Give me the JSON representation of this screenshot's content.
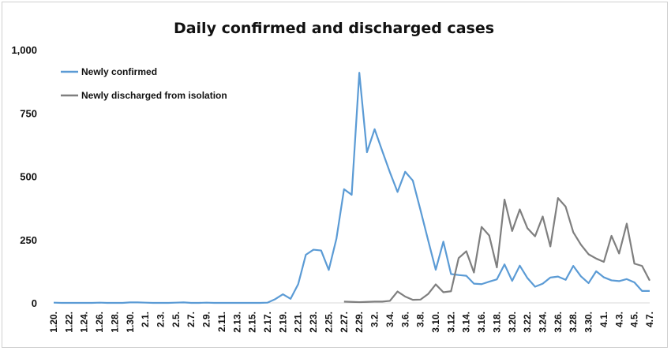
{
  "chart_data": {
    "type": "line",
    "title": "Daily confirmed and discharged cases",
    "xlabel": "",
    "ylabel": "",
    "ylim": [
      0,
      1000
    ],
    "yticks": [
      0,
      250,
      500,
      750,
      1000
    ],
    "ytick_labels": [
      "0",
      "250",
      "500",
      "750",
      "1,000"
    ],
    "grid": false,
    "legend_position": "top-left",
    "x": [
      "1.20.",
      "1.21.",
      "1.22.",
      "1.23.",
      "1.24.",
      "1.25.",
      "1.26.",
      "1.27.",
      "1.28.",
      "1.29.",
      "1.30.",
      "1.31.",
      "2.1.",
      "2.2.",
      "2.3.",
      "2.4.",
      "2.5.",
      "2.6.",
      "2.7.",
      "2.8.",
      "2.9.",
      "2.10.",
      "2.11.",
      "2.12.",
      "2.13.",
      "2.14.",
      "2.15.",
      "2.16.",
      "2.17.",
      "2.18.",
      "2.19.",
      "2.20.",
      "2.21.",
      "2.22.",
      "2.23.",
      "2.24.",
      "2.25.",
      "2.26.",
      "2.27.",
      "2.28.",
      "2.29.",
      "3.1.",
      "3.2.",
      "3.3.",
      "3.4.",
      "3.5.",
      "3.6.",
      "3.7.",
      "3.8.",
      "3.9.",
      "3.10.",
      "3.11.",
      "3.12.",
      "3.13.",
      "3.14.",
      "3.15.",
      "3.16.",
      "3.17.",
      "3.18.",
      "3.19.",
      "3.20.",
      "3.21.",
      "3.22.",
      "3.23.",
      "3.24.",
      "3.25.",
      "3.26.",
      "3.27.",
      "3.28.",
      "3.29.",
      "3.30.",
      "3.31.",
      "4.1.",
      "4.2.",
      "4.3.",
      "4.4.",
      "4.5.",
      "4.6.",
      "4.7."
    ],
    "xtick_labels": [
      "1.20.",
      "1.22.",
      "1.24.",
      "1.26.",
      "1.28.",
      "1.30.",
      "2.1.",
      "2.3.",
      "2.5.",
      "2.7.",
      "2.9.",
      "2.11.",
      "2.13.",
      "2.15.",
      "2.17.",
      "2.19.",
      "2.21.",
      "2.23.",
      "2.25.",
      "2.27.",
      "2.29.",
      "3.2.",
      "3.4.",
      "3.6.",
      "3.8.",
      "3.10.",
      "3.12.",
      "3.14.",
      "3.16.",
      "3.18.",
      "3.20.",
      "3.22.",
      "3.24.",
      "3.26.",
      "3.28.",
      "3.30.",
      "4.1.",
      "4.3.",
      "4.5.",
      "4.7."
    ],
    "series": [
      {
        "name": "Newly confirmed",
        "color": "#5b9bd5",
        "values": [
          1,
          0,
          0,
          0,
          0,
          0,
          1,
          0,
          0,
          0,
          2,
          2,
          1,
          0,
          0,
          0,
          1,
          2,
          0,
          0,
          1,
          0,
          0,
          0,
          0,
          0,
          0,
          0,
          1,
          15,
          34,
          16,
          74,
          190,
          210,
          207,
          130,
          253,
          449,
          427,
          909,
          595,
          686,
          600,
          516,
          438,
          518,
          483,
          367,
          248,
          131,
          242,
          114,
          110,
          107,
          76,
          74,
          84,
          93,
          152,
          87,
          147,
          98,
          64,
          76,
          100,
          104,
          91,
          146,
          105,
          78,
          125,
          101,
          89,
          86,
          94,
          81,
          47,
          47
        ]
      },
      {
        "name": "Newly discharged from isolation",
        "color": "#7f7f7f",
        "values": [
          null,
          null,
          null,
          null,
          null,
          null,
          null,
          null,
          null,
          null,
          null,
          null,
          null,
          null,
          null,
          null,
          null,
          null,
          null,
          null,
          null,
          null,
          null,
          null,
          null,
          null,
          null,
          null,
          null,
          null,
          null,
          null,
          null,
          null,
          null,
          null,
          null,
          null,
          5,
          4,
          3,
          4,
          5,
          5,
          8,
          45,
          25,
          12,
          13,
          35,
          73,
          42,
          46,
          177,
          204,
          120,
          300,
          266,
          140,
          408,
          284,
          369,
          295,
          263,
          341,
          223,
          414,
          380,
          279,
          230,
          192,
          175,
          162,
          265,
          195,
          313,
          155,
          146,
          88
        ]
      }
    ]
  }
}
